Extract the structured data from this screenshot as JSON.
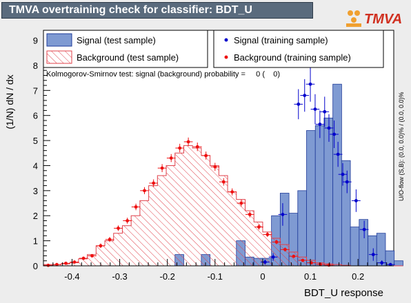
{
  "window": {
    "title": "TMVA overtraining check for classifier: BDT_U"
  },
  "logo": {
    "text": "TMVA",
    "colors": [
      "#f0a030",
      "#d03020"
    ]
  },
  "ks_text": "Kolmogorov-Smirnov test: signal (background) probability =     0 (    0)",
  "side_text": "U/O-flow (S,B): (0.0, 0.0)% / (0.0, 0.0)%",
  "colors": {
    "signal_fill": "#7f9ad2",
    "signal_line": "#1e3a99",
    "background": "#e0404a",
    "train_signal": "#0000cc",
    "train_background": "#ee1111",
    "frame_bg": "#ffffff",
    "panel": "#ededed"
  },
  "chart_data": {
    "type": "histogram",
    "xlabel": "BDT_U response",
    "ylabel": "(1/N) dN / dx",
    "xlim": [
      -0.46,
      0.275
    ],
    "ylim": [
      0,
      9.4
    ],
    "xticks": [
      -0.4,
      -0.3,
      -0.2,
      -0.1,
      0,
      0.1,
      0.2
    ],
    "xtick_labels": [
      "-0.4",
      "-0.3",
      "-0.2",
      "-0.1",
      "0",
      "0.1",
      "0.2"
    ],
    "yticks": [
      0,
      1,
      2,
      3,
      4,
      5,
      6,
      7,
      8,
      9
    ],
    "ytick_labels": [
      "0",
      "1",
      "2",
      "3",
      "4",
      "5",
      "6",
      "7",
      "8",
      "9"
    ],
    "bin_edges_start": -0.46,
    "bin_width": 0.0184,
    "legend": [
      {
        "key": "signal_test",
        "label": "Signal (test sample)"
      },
      {
        "key": "background_test",
        "label": "Background (test sample)"
      },
      {
        "key": "signal_train",
        "label": "Signal (training sample)"
      },
      {
        "key": "background_train",
        "label": "Background (training sample)"
      }
    ],
    "series": [
      {
        "name": "Signal (test sample)",
        "kind": "filled-histogram",
        "values": [
          0,
          0,
          0,
          0,
          0,
          0,
          0,
          0,
          0,
          0,
          0,
          0,
          0,
          0,
          0,
          0.45,
          0,
          0,
          0.45,
          0,
          0,
          0,
          1.0,
          0.35,
          0.3,
          0.3,
          2.0,
          2.9,
          2.1,
          3.0,
          5.4,
          5.6,
          5.9,
          7.25,
          4.2,
          1.55,
          1.85,
          1.2,
          1.3,
          0.6,
          0.2
        ]
      },
      {
        "name": "Background (test sample)",
        "kind": "hatched-histogram",
        "values": [
          0.05,
          0.05,
          0.08,
          0.12,
          0.28,
          0.45,
          0.8,
          1.0,
          1.3,
          1.6,
          2.0,
          2.6,
          3.2,
          3.6,
          4.0,
          4.5,
          4.8,
          4.7,
          4.4,
          4.0,
          3.6,
          2.95,
          2.65,
          2.2,
          1.75,
          1.35,
          1.1,
          0.85,
          0.55,
          0.35,
          0.22,
          0.12,
          0.08,
          0.05,
          0.02,
          0,
          0,
          0,
          0,
          0,
          0
        ]
      },
      {
        "name": "Signal (training sample)",
        "kind": "points",
        "points": [
          [
            0.005,
            0.15
          ],
          [
            0.042,
            2.05
          ],
          [
            0.075,
            6.45
          ],
          [
            0.088,
            6.8
          ],
          [
            0.1,
            7.25
          ],
          [
            0.11,
            6.25
          ],
          [
            0.12,
            5.65
          ],
          [
            0.13,
            6.15
          ],
          [
            0.139,
            5.5
          ],
          [
            0.15,
            5.25
          ],
          [
            0.158,
            4.45
          ],
          [
            0.168,
            3.65
          ],
          [
            0.177,
            3.35
          ],
          [
            0.196,
            2.6
          ],
          [
            0.213,
            1.45
          ],
          [
            0.232,
            0.45
          ],
          [
            0.25,
            0.12
          ],
          [
            0.268,
            0.05
          ],
          [
            0.022,
            0.35
          ]
        ],
        "yerr": [
          0.1,
          0.45,
          0.6,
          0.65,
          0.7,
          0.6,
          0.55,
          0.6,
          0.55,
          0.55,
          0.5,
          0.45,
          0.45,
          0.45,
          0.35,
          0.25,
          0.1,
          0.05,
          0.15
        ]
      },
      {
        "name": "Background (training sample)",
        "kind": "points",
        "points": [
          [
            -0.45,
            0.02
          ],
          [
            -0.432,
            0.05
          ],
          [
            -0.413,
            0.1
          ],
          [
            -0.395,
            0.15
          ],
          [
            -0.376,
            0.3
          ],
          [
            -0.358,
            0.4
          ],
          [
            -0.34,
            0.8
          ],
          [
            -0.321,
            1.05
          ],
          [
            -0.303,
            1.5
          ],
          [
            -0.284,
            1.8
          ],
          [
            -0.266,
            2.35
          ],
          [
            -0.248,
            3.0
          ],
          [
            -0.229,
            3.3
          ],
          [
            -0.211,
            3.9
          ],
          [
            -0.192,
            4.3
          ],
          [
            -0.174,
            4.7
          ],
          [
            -0.156,
            4.95
          ],
          [
            -0.137,
            4.75
          ],
          [
            -0.119,
            4.4
          ],
          [
            -0.1,
            3.95
          ],
          [
            -0.082,
            3.35
          ],
          [
            -0.064,
            2.95
          ],
          [
            -0.045,
            2.5
          ],
          [
            -0.027,
            2.05
          ],
          [
            -0.008,
            1.55
          ],
          [
            0.01,
            1.25
          ],
          [
            0.029,
            0.95
          ],
          [
            0.047,
            0.65
          ],
          [
            0.065,
            0.38
          ],
          [
            0.084,
            0.22
          ],
          [
            0.102,
            0.12
          ],
          [
            0.121,
            0.06
          ],
          [
            0.139,
            0.03
          ]
        ],
        "yerr": [
          0.02,
          0.03,
          0.04,
          0.05,
          0.06,
          0.07,
          0.09,
          0.1,
          0.11,
          0.12,
          0.13,
          0.14,
          0.15,
          0.16,
          0.16,
          0.17,
          0.17,
          0.17,
          0.16,
          0.16,
          0.15,
          0.14,
          0.13,
          0.12,
          0.11,
          0.1,
          0.09,
          0.08,
          0.06,
          0.05,
          0.04,
          0.03,
          0.02
        ]
      }
    ]
  }
}
